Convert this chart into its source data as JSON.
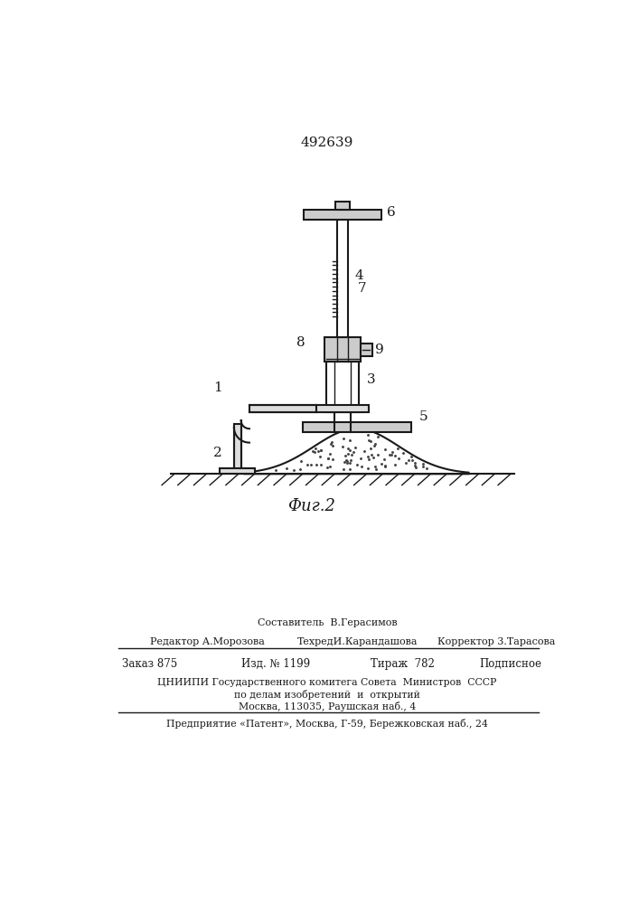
{
  "patent_number": "492639",
  "fig_label": "Фиг.2",
  "background_color": "#ffffff",
  "line_color": "#1a1a1a",
  "footer": {
    "sostavitel": "Составитель  В.Герасимов",
    "editor": "Редактор А.Морозова",
    "tehred": "ТехредИ.Карандашова",
    "korrektor": "Корректор 3.Тарасова",
    "zakaz": "Заказ 875",
    "izd": "Изд. № 1199",
    "tirazh": "Тираж  782",
    "podpisnoe": "Подписное",
    "tsniipi": "ЦНИИПИ Государственного комитега Совета  Министров  СССР",
    "po_delam": "по делам изобретений  и  открытий",
    "moscow": "Москва, 113035, Раушская наб., 4",
    "predpriyatie": "Предприятие «Патент», Москва, Г-59, Бережковская наб., 24"
  }
}
